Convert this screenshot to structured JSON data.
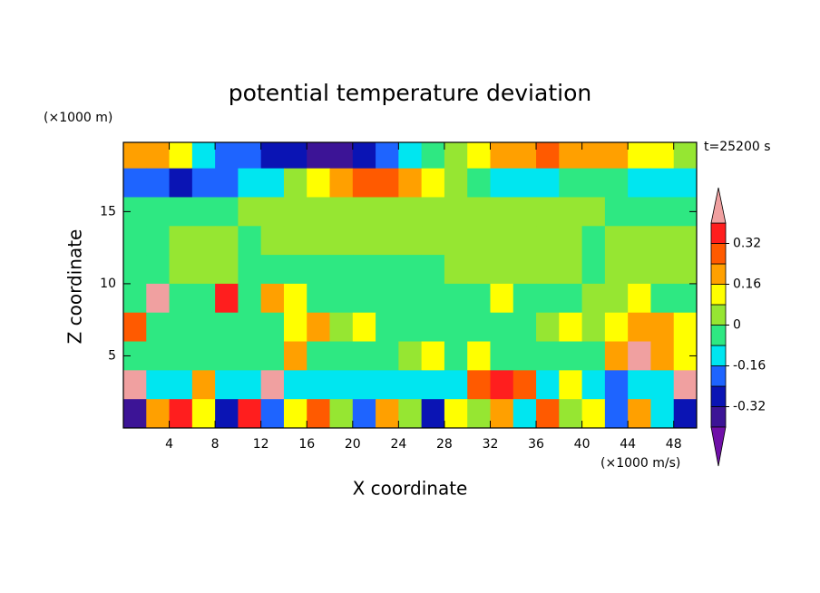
{
  "chart_data": {
    "type": "filled-contour",
    "title": "potential temperature deviation",
    "x_label": "X coordinate",
    "y_label": "Z coordinate",
    "x_unit": "(×1000 m/s)",
    "y_unit": "(×1000 m)",
    "annotation": "t=25200 s",
    "xlim": [
      0,
      50
    ],
    "ylim": [
      0,
      19.8
    ],
    "xticks": [
      4,
      8,
      12,
      16,
      20,
      24,
      28,
      32,
      36,
      40,
      44,
      48
    ],
    "yticks": [
      5,
      10,
      15
    ],
    "levels": [
      -0.4,
      -0.32,
      -0.24,
      -0.16,
      -0.08,
      0,
      0.08,
      0.16,
      0.24,
      0.32,
      0.4
    ],
    "colors": [
      "#7010a8",
      "#3c1496",
      "#0a14b4",
      "#1e64ff",
      "#00e6f0",
      "#2ee882",
      "#96e632",
      "#ffff00",
      "#ffa000",
      "#ff5a00",
      "#ff1e1e",
      "#f0a0a0"
    ],
    "colorbar_ticks": [
      -0.32,
      -0.16,
      0,
      0.16,
      0.32
    ],
    "x": [
      1,
      3,
      5,
      7,
      9,
      11,
      13,
      15,
      17,
      19,
      21,
      23,
      25,
      27,
      29,
      31,
      33,
      35,
      37,
      39,
      41,
      43,
      45,
      47,
      49
    ],
    "y": [
      19,
      17,
      15,
      13,
      11,
      9,
      7,
      5,
      3,
      1
    ],
    "z": [
      [
        0.2,
        0.2,
        0.1,
        -0.1,
        -0.2,
        -0.2,
        -0.28,
        -0.28,
        -0.35,
        -0.35,
        -0.28,
        -0.2,
        -0.1,
        -0.05,
        0.05,
        0.1,
        0.2,
        0.2,
        0.28,
        0.2,
        0.2,
        0.2,
        0.1,
        0.1,
        0.05
      ],
      [
        -0.2,
        -0.2,
        -0.28,
        -0.2,
        -0.2,
        -0.1,
        -0.1,
        0.05,
        0.1,
        0.2,
        0.28,
        0.28,
        0.2,
        0.1,
        0.05,
        -0.05,
        -0.1,
        -0.1,
        -0.1,
        -0.05,
        -0.05,
        -0.05,
        -0.1,
        -0.1,
        -0.1
      ],
      [
        -0.05,
        -0.05,
        -0.05,
        -0.05,
        -0.05,
        0.05,
        0.05,
        0.05,
        0.05,
        0.05,
        0.05,
        0.05,
        0.05,
        0.05,
        0.05,
        0.05,
        0.05,
        0.05,
        0.05,
        0.05,
        0.05,
        -0.05,
        -0.05,
        -0.05,
        -0.05
      ],
      [
        -0.05,
        -0.05,
        0.05,
        0.05,
        0.05,
        -0.05,
        0.05,
        0.05,
        0.05,
        0.05,
        0.05,
        0.05,
        0.05,
        0.05,
        0.05,
        0.05,
        0.05,
        0.05,
        0.05,
        0.05,
        -0.05,
        0.05,
        0.05,
        0.05,
        0.05
      ],
      [
        -0.05,
        -0.05,
        0.05,
        0.05,
        0.05,
        -0.05,
        -0.05,
        -0.05,
        -0.05,
        -0.05,
        -0.05,
        -0.05,
        -0.05,
        -0.05,
        0.05,
        0.05,
        0.05,
        0.05,
        0.05,
        0.05,
        -0.05,
        0.05,
        0.05,
        0.05,
        0.05
      ],
      [
        -0.05,
        0.45,
        -0.05,
        -0.05,
        0.35,
        -0.05,
        0.2,
        0.1,
        -0.05,
        -0.05,
        -0.05,
        -0.05,
        -0.05,
        -0.05,
        -0.05,
        -0.05,
        0.1,
        -0.05,
        -0.05,
        -0.05,
        0.05,
        0.05,
        0.1,
        -0.05,
        -0.05
      ],
      [
        0.28,
        -0.05,
        -0.05,
        -0.05,
        -0.05,
        -0.05,
        -0.05,
        0.1,
        0.2,
        0.05,
        0.1,
        -0.05,
        -0.05,
        -0.05,
        -0.05,
        -0.05,
        -0.05,
        -0.05,
        0.05,
        0.1,
        0.05,
        0.1,
        0.2,
        0.2,
        0.1
      ],
      [
        -0.05,
        -0.05,
        -0.05,
        -0.05,
        -0.05,
        -0.05,
        -0.05,
        0.2,
        -0.05,
        -0.05,
        -0.05,
        -0.05,
        0.05,
        0.1,
        -0.05,
        0.1,
        -0.05,
        -0.05,
        -0.05,
        -0.05,
        -0.05,
        0.2,
        0.45,
        0.2,
        0.1
      ],
      [
        0.45,
        -0.1,
        -0.1,
        0.2,
        -0.1,
        -0.1,
        0.45,
        -0.1,
        -0.1,
        -0.1,
        -0.1,
        -0.1,
        -0.1,
        -0.1,
        -0.1,
        0.28,
        0.35,
        0.28,
        -0.1,
        0.1,
        -0.1,
        -0.2,
        -0.1,
        -0.1,
        0.45
      ],
      [
        -0.35,
        0.2,
        0.35,
        0.1,
        -0.28,
        0.35,
        -0.2,
        0.1,
        0.28,
        0.05,
        -0.2,
        0.2,
        0.05,
        -0.28,
        0.1,
        0.05,
        0.2,
        -0.1,
        0.28,
        0.05,
        0.1,
        -0.2,
        0.2,
        -0.1,
        -0.28
      ]
    ]
  }
}
